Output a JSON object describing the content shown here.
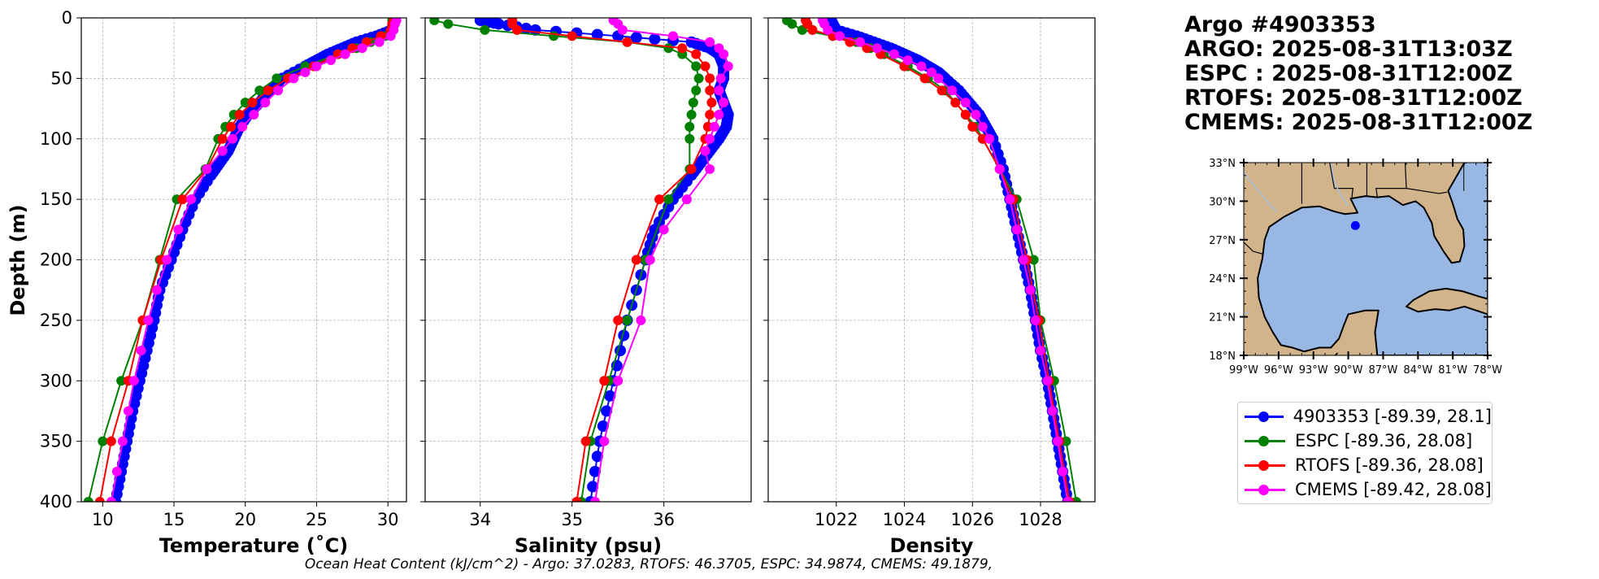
{
  "figure": {
    "ylabel": "Depth (m)",
    "footer": "Ocean Heat Content (kJ/cm^2) - Argo: 37.0283,  RTOFS: 46.3705,  ESPC: 34.9874,  CMEMS: 49.1879,"
  },
  "info": {
    "title": "Argo #4903353",
    "lines": [
      "ARGO: 2025-08-31T13:03Z",
      "ESPC : 2025-08-31T12:00Z",
      "RTOFS: 2025-08-31T12:00Z",
      "CMEMS: 2025-08-31T12:00Z"
    ]
  },
  "colors": {
    "argo": "#0000ff",
    "espc": "#008000",
    "rtofs": "#ff0000",
    "cmems": "#ff00ff",
    "land": "#d2b48c",
    "ocean": "#98b7e3"
  },
  "legend": [
    {
      "label": "4903353 [-89.39, 28.1]",
      "color": "#0000ff"
    },
    {
      "label": "ESPC [-89.36, 28.08]",
      "color": "#008000"
    },
    {
      "label": "RTOFS [-89.36, 28.08]",
      "color": "#ff0000"
    },
    {
      "label": "CMEMS [-89.42, 28.08]",
      "color": "#ff00ff"
    }
  ],
  "map": {
    "lat_ticks": [
      "33°N",
      "30°N",
      "27°N",
      "24°N",
      "21°N",
      "18°N"
    ],
    "lon_ticks": [
      "99°W",
      "96°W",
      "93°W",
      "90°W",
      "87°W",
      "84°W",
      "81°W",
      "78°W"
    ],
    "lon_range": [
      -99,
      -78
    ],
    "lat_range": [
      18,
      33
    ],
    "float_position": [
      -89.39,
      28.1
    ]
  },
  "chart_data": [
    {
      "type": "line",
      "xlabel": "Temperature (˚C)",
      "ylabel": "Depth (m)",
      "xlim": [
        8.5,
        31.3
      ],
      "ylim": [
        400,
        0
      ],
      "xticks": [
        10,
        15,
        20,
        25,
        30
      ],
      "yticks": [
        0,
        50,
        100,
        150,
        200,
        250,
        300,
        350,
        400
      ],
      "series": [
        {
          "name": "Argo",
          "color": "#0000ff",
          "dense": true,
          "depth": [
            2,
            10,
            15,
            20,
            25,
            30,
            35,
            40,
            50,
            60,
            70,
            80,
            90,
            100,
            110,
            120,
            130,
            150,
            175,
            200,
            225,
            250,
            275,
            300,
            325,
            350,
            375,
            400
          ],
          "values": [
            30.4,
            30.3,
            29.2,
            27.8,
            26.8,
            25.8,
            25.0,
            24.2,
            22.6,
            21.7,
            21.0,
            20.2,
            19.6,
            19.2,
            18.8,
            18.2,
            17.6,
            16.5,
            15.6,
            14.8,
            14.0,
            13.6,
            13.1,
            12.6,
            12.1,
            11.7,
            11.3,
            10.9
          ]
        },
        {
          "name": "ESPC",
          "color": "#008000",
          "depth": [
            2,
            5,
            10,
            15,
            20,
            25,
            30,
            40,
            50,
            60,
            70,
            80,
            90,
            100,
            125,
            150,
            200,
            250,
            300,
            350,
            400
          ],
          "values": [
            30.3,
            30.3,
            30.2,
            29.8,
            28.8,
            27.8,
            26.5,
            24.2,
            22.2,
            21.0,
            20.0,
            19.2,
            18.6,
            18.1,
            17.2,
            15.2,
            14.0,
            12.8,
            11.3,
            10.0,
            9.0
          ]
        },
        {
          "name": "RTOFS",
          "color": "#ff0000",
          "depth": [
            2,
            5,
            10,
            15,
            20,
            25,
            30,
            40,
            50,
            60,
            70,
            80,
            90,
            100,
            125,
            150,
            200,
            250,
            300,
            350,
            400
          ],
          "values": [
            30.4,
            30.3,
            30.2,
            29.5,
            28.5,
            27.5,
            26.5,
            24.8,
            23.0,
            21.6,
            20.5,
            19.6,
            19.0,
            18.4,
            17.3,
            15.6,
            14.1,
            12.8,
            11.8,
            10.6,
            9.8
          ]
        },
        {
          "name": "CMEMS",
          "color": "#ff00ff",
          "depth": [
            2,
            5,
            10,
            15,
            20,
            25,
            30,
            35,
            40,
            45,
            50,
            60,
            70,
            80,
            90,
            100,
            110,
            125,
            150,
            175,
            200,
            225,
            250,
            275,
            300,
            325,
            350,
            375,
            400
          ],
          "values": [
            30.6,
            30.5,
            30.4,
            30.2,
            29.4,
            28.2,
            27.0,
            26.0,
            25.0,
            24.2,
            23.4,
            22.3,
            21.4,
            20.6,
            19.8,
            19.1,
            18.4,
            17.3,
            16.2,
            15.3,
            14.5,
            13.8,
            13.2,
            12.7,
            12.2,
            11.8,
            11.4,
            11.0,
            10.6
          ]
        }
      ]
    },
    {
      "type": "line",
      "xlabel": "Salinity (psu)",
      "ylabel": "Depth (m)",
      "xlim": [
        33.4,
        36.95
      ],
      "ylim": [
        400,
        0
      ],
      "xticks": [
        34,
        35,
        36
      ],
      "yticks": [
        0,
        50,
        100,
        150,
        200,
        250,
        300,
        350,
        400
      ],
      "series": [
        {
          "name": "Argo",
          "color": "#0000ff",
          "dense": true,
          "depth": [
            2,
            5,
            10,
            15,
            20,
            25,
            30,
            40,
            50,
            60,
            70,
            80,
            90,
            100,
            110,
            120,
            130,
            150,
            175,
            200,
            250,
            300,
            350,
            400
          ],
          "values": [
            34.0,
            34.2,
            34.6,
            35.5,
            36.3,
            36.5,
            36.6,
            36.65,
            36.65,
            36.6,
            36.65,
            36.7,
            36.68,
            36.6,
            36.5,
            36.4,
            36.3,
            36.1,
            35.9,
            35.8,
            35.6,
            35.45,
            35.3,
            35.2
          ]
        },
        {
          "name": "ESPC",
          "color": "#008000",
          "depth": [
            2,
            5,
            10,
            15,
            20,
            25,
            30,
            40,
            50,
            60,
            70,
            80,
            90,
            100,
            125,
            150,
            200,
            250,
            300,
            350,
            400
          ],
          "values": [
            33.5,
            33.65,
            34.05,
            34.8,
            35.6,
            36.05,
            36.2,
            36.35,
            36.38,
            36.35,
            36.32,
            36.3,
            36.28,
            36.28,
            36.28,
            36.05,
            35.8,
            35.6,
            35.4,
            35.2,
            35.1
          ]
        },
        {
          "name": "RTOFS",
          "color": "#ff0000",
          "depth": [
            2,
            5,
            10,
            15,
            20,
            25,
            30,
            40,
            50,
            60,
            70,
            80,
            90,
            100,
            125,
            150,
            200,
            250,
            300,
            350,
            400
          ],
          "values": [
            34.35,
            34.35,
            34.4,
            35.0,
            35.6,
            36.2,
            36.35,
            36.45,
            36.5,
            36.5,
            36.52,
            36.5,
            36.48,
            36.45,
            36.3,
            35.95,
            35.7,
            35.5,
            35.35,
            35.15,
            35.05
          ]
        },
        {
          "name": "CMEMS",
          "color": "#ff00ff",
          "depth": [
            2,
            5,
            10,
            15,
            20,
            25,
            30,
            40,
            50,
            60,
            70,
            80,
            90,
            100,
            110,
            125,
            150,
            175,
            200,
            250,
            300,
            350,
            400
          ],
          "values": [
            35.45,
            35.5,
            35.55,
            36.1,
            36.5,
            36.6,
            36.65,
            36.7,
            36.62,
            36.6,
            36.65,
            36.6,
            36.55,
            36.5,
            36.45,
            36.5,
            36.25,
            36.0,
            35.85,
            35.75,
            35.5,
            35.35,
            35.25
          ]
        }
      ]
    },
    {
      "type": "line",
      "xlabel": "Density",
      "ylabel": "Depth (m)",
      "xlim": [
        1020.0,
        1029.6
      ],
      "ylim": [
        400,
        0
      ],
      "xticks": [
        1022,
        1024,
        1026,
        1028
      ],
      "yticks": [
        0,
        50,
        100,
        150,
        200,
        250,
        300,
        350,
        400
      ],
      "series": [
        {
          "name": "Argo",
          "color": "#0000ff",
          "dense": true,
          "depth": [
            2,
            5,
            10,
            15,
            20,
            25,
            30,
            35,
            40,
            45,
            50,
            60,
            70,
            80,
            90,
            100,
            125,
            150,
            175,
            200,
            225,
            250,
            275,
            300,
            325,
            350,
            375,
            400
          ],
          "values": [
            1021.85,
            1021.9,
            1022.0,
            1022.6,
            1023.1,
            1023.6,
            1024.0,
            1024.4,
            1024.7,
            1025.0,
            1025.2,
            1025.6,
            1025.9,
            1026.2,
            1026.4,
            1026.6,
            1026.9,
            1027.1,
            1027.3,
            1027.5,
            1027.7,
            1027.85,
            1028.0,
            1028.2,
            1028.35,
            1028.5,
            1028.65,
            1028.8
          ]
        },
        {
          "name": "ESPC",
          "color": "#008000",
          "depth": [
            2,
            5,
            10,
            15,
            20,
            25,
            30,
            40,
            50,
            60,
            70,
            80,
            90,
            100,
            125,
            150,
            200,
            250,
            300,
            350,
            400
          ],
          "values": [
            1020.55,
            1020.7,
            1021.0,
            1021.9,
            1022.6,
            1023.0,
            1023.4,
            1024.1,
            1024.7,
            1025.2,
            1025.5,
            1025.8,
            1026.1,
            1026.3,
            1026.8,
            1027.3,
            1027.8,
            1028.0,
            1028.4,
            1028.75,
            1029.05
          ]
        },
        {
          "name": "RTOFS",
          "color": "#ff0000",
          "depth": [
            2,
            5,
            10,
            15,
            20,
            25,
            30,
            40,
            50,
            60,
            70,
            80,
            90,
            100,
            125,
            150,
            200,
            250,
            300,
            350,
            400
          ],
          "values": [
            1021.1,
            1021.15,
            1021.3,
            1021.9,
            1022.4,
            1022.9,
            1023.3,
            1024.0,
            1024.6,
            1025.1,
            1025.5,
            1025.8,
            1026.0,
            1026.3,
            1026.8,
            1027.2,
            1027.6,
            1027.95,
            1028.25,
            1028.55,
            1028.85
          ]
        },
        {
          "name": "CMEMS",
          "color": "#ff00ff",
          "depth": [
            2,
            5,
            10,
            15,
            20,
            25,
            30,
            35,
            40,
            45,
            50,
            60,
            70,
            80,
            90,
            100,
            125,
            150,
            175,
            200,
            225,
            250,
            275,
            300,
            325,
            350,
            375,
            400
          ],
          "values": [
            1021.6,
            1021.65,
            1021.75,
            1022.1,
            1022.7,
            1023.2,
            1023.7,
            1024.1,
            1024.5,
            1024.8,
            1025.0,
            1025.4,
            1025.8,
            1026.1,
            1026.3,
            1026.5,
            1026.8,
            1027.1,
            1027.3,
            1027.5,
            1027.7,
            1027.85,
            1028.0,
            1028.2,
            1028.35,
            1028.5,
            1028.65,
            1028.8
          ]
        }
      ]
    }
  ]
}
